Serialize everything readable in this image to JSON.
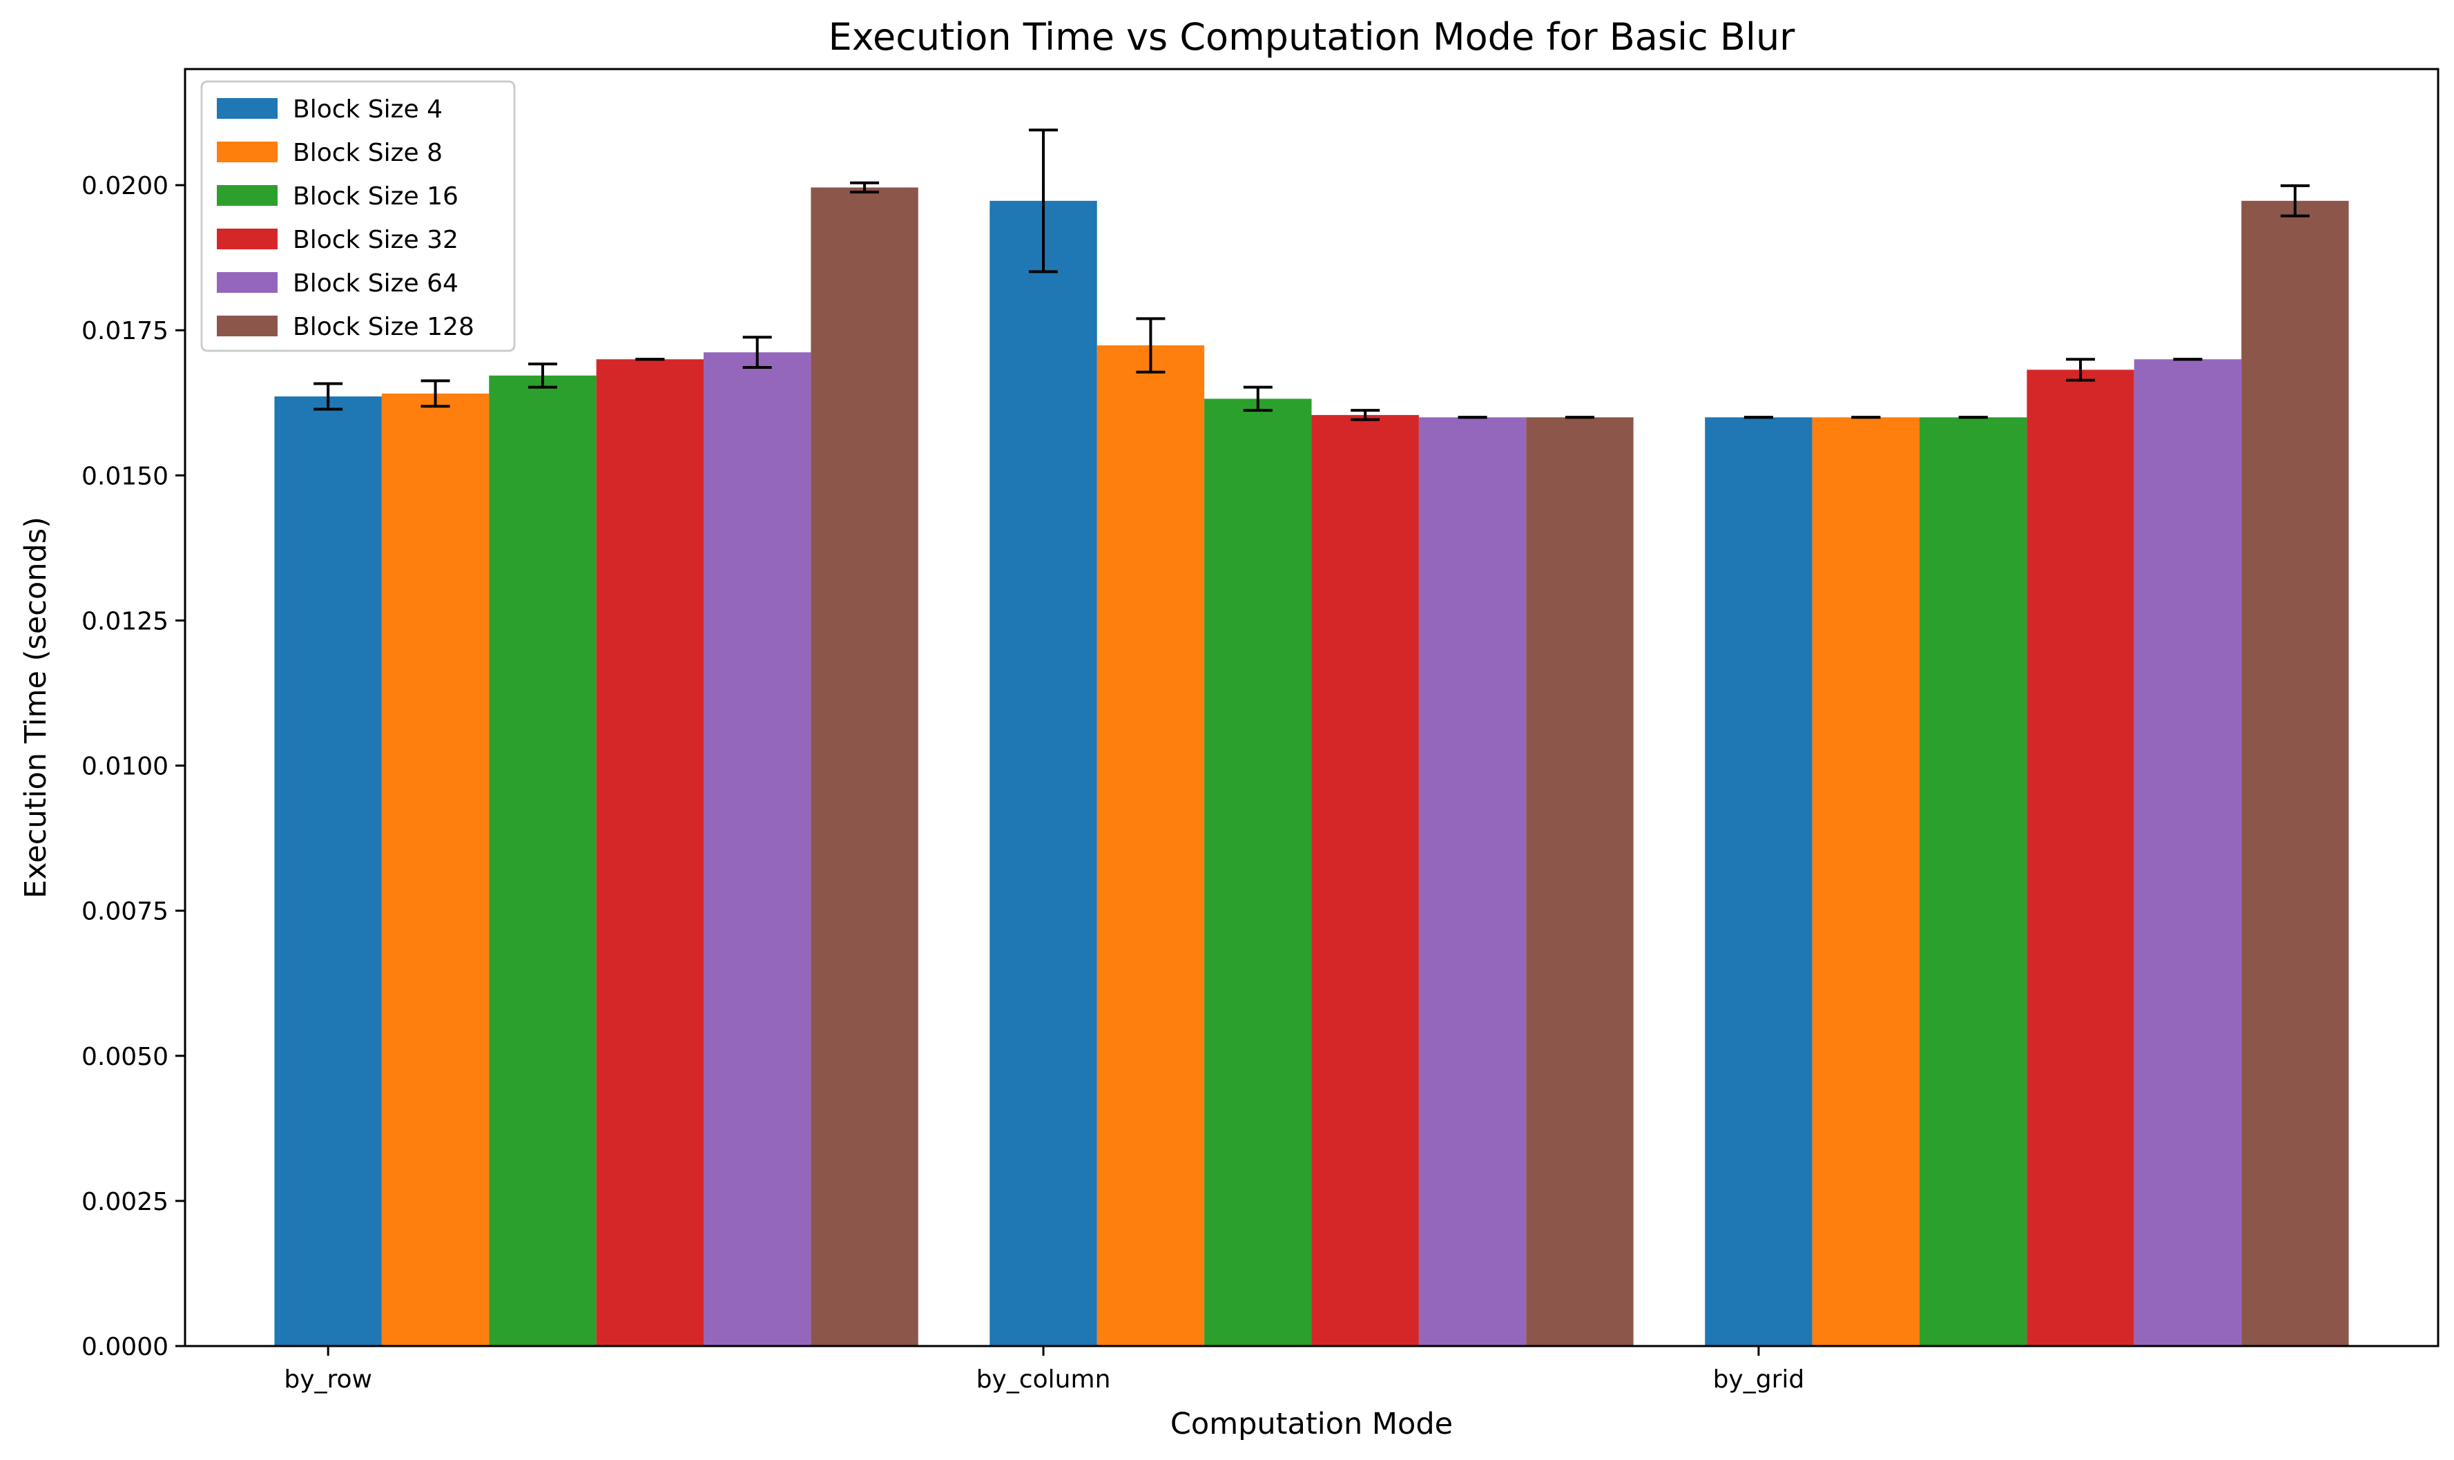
{
  "chart_data": {
    "type": "bar",
    "title": "Execution Time vs Computation Mode for Basic Blur",
    "xlabel": "Computation Mode",
    "ylabel": "Execution Time (seconds)",
    "categories": [
      "by_row",
      "by_column",
      "by_grid"
    ],
    "ylim": [
      0,
      0.022
    ],
    "yticks": [
      "0.0000",
      "0.0025",
      "0.0050",
      "0.0075",
      "0.0100",
      "0.0125",
      "0.0150",
      "0.0175",
      "0.0200"
    ],
    "grid": false,
    "legend_position": "top-left",
    "series": [
      {
        "name": "Block Size 4",
        "color": "#1f77b4",
        "values": [
          0.01636,
          0.01973,
          0.016
        ],
        "errors": [
          0.00022,
          0.00122,
          0.0
        ]
      },
      {
        "name": "Block Size 8",
        "color": "#ff7f0e",
        "values": [
          0.01641,
          0.01724,
          0.016
        ],
        "errors": [
          0.00022,
          0.00046,
          0.0
        ]
      },
      {
        "name": "Block Size 16",
        "color": "#2ca02c",
        "values": [
          0.01672,
          0.01632,
          0.016
        ],
        "errors": [
          0.0002,
          0.0002,
          0.0
        ]
      },
      {
        "name": "Block Size 32",
        "color": "#d62728",
        "values": [
          0.017,
          0.01604,
          0.01682
        ],
        "errors": [
          0.0,
          8e-05,
          0.00018
        ]
      },
      {
        "name": "Block Size 64",
        "color": "#9467bd",
        "values": [
          0.01712,
          0.016,
          0.017
        ],
        "errors": [
          0.00026,
          0.0,
          0.0
        ]
      },
      {
        "name": "Block Size 128",
        "color": "#8c564b",
        "values": [
          0.01996,
          0.016,
          0.01973
        ],
        "errors": [
          8e-05,
          0.0,
          0.00026
        ]
      }
    ]
  }
}
